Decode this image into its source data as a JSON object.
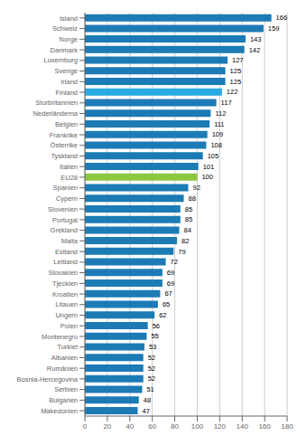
{
  "chart_data": {
    "type": "bar",
    "orientation": "horizontal",
    "categories": [
      "Island",
      "Schweiz",
      "Norge",
      "Danmark",
      "Luxemburg",
      "Sverige",
      "Irland",
      "Finland",
      "Storbritannien",
      "Nederländerna",
      "Belgien",
      "Frankrike",
      "Österrike",
      "Tyskland",
      "Italien",
      "EU28",
      "Spanien",
      "Cypern",
      "Slovenien",
      "Portugal",
      "Grekland",
      "Malta",
      "Estland",
      "Lettland",
      "Slovakien",
      "Tjeckien",
      "Kroatien",
      "Litauen",
      "Ungern",
      "Polen",
      "Montenegro",
      "Turkiet",
      "Albanien",
      "Rumänien",
      "Bosnia-Hercegovina",
      "Serbien",
      "Bulgarien",
      "Makedonien"
    ],
    "values": [
      166,
      159,
      143,
      142,
      127,
      125,
      125,
      122,
      117,
      112,
      111,
      109,
      108,
      105,
      101,
      100,
      92,
      88,
      85,
      85,
      84,
      82,
      79,
      72,
      69,
      69,
      67,
      65,
      62,
      56,
      55,
      53,
      52,
      52,
      52,
      51,
      48,
      47
    ],
    "colors": [
      "#1C7BB5",
      "#1C7BB5",
      "#1C7BB5",
      "#1C7BB5",
      "#1C7BB5",
      "#1C7BB5",
      "#1C7BB5",
      "#29ABE2",
      "#1C7BB5",
      "#1C7BB5",
      "#1C7BB5",
      "#1C7BB5",
      "#1C7BB5",
      "#1C7BB5",
      "#1C7BB5",
      "#8DC63F",
      "#1C7BB5",
      "#1C7BB5",
      "#1C7BB5",
      "#1C7BB5",
      "#1C7BB5",
      "#1C7BB5",
      "#1C7BB5",
      "#1C7BB5",
      "#1C7BB5",
      "#1C7BB5",
      "#1C7BB5",
      "#1C7BB5",
      "#1C7BB5",
      "#1C7BB5",
      "#1C7BB5",
      "#1C7BB5",
      "#1C7BB5",
      "#1C7BB5",
      "#1C7BB5",
      "#1C7BB5",
      "#1C7BB5",
      "#1C7BB5"
    ],
    "xlim": [
      0,
      180
    ],
    "xticks": [
      0,
      20,
      40,
      60,
      80,
      100,
      120,
      140,
      160,
      180
    ],
    "grid": true,
    "data_labels": true
  }
}
